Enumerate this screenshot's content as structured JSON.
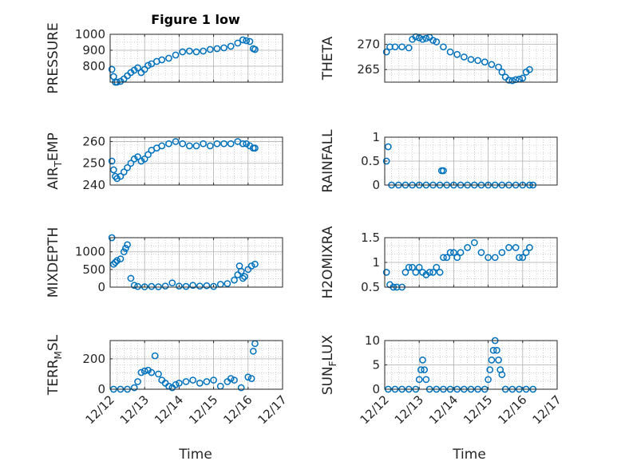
{
  "figure": {
    "title": "Figure 1 low",
    "xlabel": "Time"
  },
  "time_axis": {
    "ticks": [
      "12/12",
      "12/13",
      "12/14",
      "12/15",
      "12/16",
      "12/17"
    ],
    "xlim": [
      0,
      5
    ]
  },
  "colors": {
    "marker": "#0072BD",
    "axis": "#262626",
    "grid": "#b0b0b0"
  },
  "chart_data": [
    {
      "type": "scatter",
      "ylabel": "PRESSURE",
      "ylim": [
        700,
        1000
      ],
      "yticks": [
        800,
        900,
        1000
      ],
      "grid": true,
      "x": [
        0.05,
        0.1,
        0.15,
        0.2,
        0.3,
        0.4,
        0.5,
        0.6,
        0.7,
        0.8,
        0.9,
        1.0,
        1.1,
        1.2,
        1.35,
        1.5,
        1.7,
        1.9,
        2.1,
        2.3,
        2.5,
        2.7,
        2.9,
        3.1,
        3.3,
        3.5,
        3.7,
        3.85,
        3.95,
        4.05,
        4.15,
        4.2
      ],
      "y": [
        780,
        735,
        700,
        700,
        705,
        720,
        740,
        760,
        775,
        790,
        760,
        780,
        805,
        815,
        830,
        840,
        850,
        870,
        890,
        895,
        890,
        895,
        905,
        910,
        915,
        925,
        945,
        965,
        960,
        955,
        910,
        905
      ]
    },
    {
      "type": "scatter",
      "ylabel": "AIR_TEMP",
      "ylim": [
        240,
        262
      ],
      "yticks": [
        240,
        250,
        260
      ],
      "grid": true,
      "x": [
        0.05,
        0.1,
        0.15,
        0.2,
        0.3,
        0.4,
        0.5,
        0.6,
        0.7,
        0.8,
        0.9,
        1.0,
        1.1,
        1.2,
        1.35,
        1.5,
        1.7,
        1.9,
        2.1,
        2.3,
        2.5,
        2.7,
        2.9,
        3.1,
        3.3,
        3.5,
        3.7,
        3.85,
        3.95,
        4.05,
        4.15,
        4.2
      ],
      "y": [
        251,
        247,
        244,
        243,
        244,
        246,
        248,
        250,
        252,
        253,
        251,
        252,
        254,
        256,
        257,
        258,
        259,
        260,
        259,
        258,
        258,
        259,
        258,
        259,
        259,
        259,
        260,
        259,
        259,
        258,
        257,
        257
      ]
    },
    {
      "type": "scatter",
      "ylabel": "MIXDEPTH",
      "ylim": [
        0,
        1400
      ],
      "yticks": [
        0,
        500,
        1000
      ],
      "grid": true,
      "x": [
        0.05,
        0.1,
        0.15,
        0.2,
        0.3,
        0.4,
        0.45,
        0.5,
        0.6,
        0.7,
        0.8,
        1.0,
        1.2,
        1.4,
        1.6,
        1.8,
        2.0,
        2.2,
        2.4,
        2.6,
        2.8,
        3.0,
        3.2,
        3.4,
        3.6,
        3.7,
        3.75,
        3.8,
        3.85,
        3.9,
        4.0,
        4.1,
        4.2
      ],
      "y": [
        1400,
        650,
        700,
        750,
        800,
        1000,
        1100,
        1200,
        250,
        50,
        20,
        10,
        20,
        10,
        30,
        120,
        30,
        20,
        50,
        30,
        40,
        20,
        80,
        100,
        200,
        350,
        600,
        450,
        250,
        300,
        500,
        600,
        650
      ]
    },
    {
      "type": "scatter",
      "ylabel": "TERR_MSL",
      "ylim": [
        0,
        320
      ],
      "yticks": [
        0,
        200
      ],
      "grid": true,
      "x": [
        0.1,
        0.3,
        0.5,
        0.7,
        0.8,
        0.9,
        1.0,
        1.1,
        1.2,
        1.3,
        1.4,
        1.5,
        1.6,
        1.7,
        1.8,
        1.9,
        2.0,
        2.2,
        2.4,
        2.6,
        2.8,
        3.0,
        3.2,
        3.4,
        3.5,
        3.6,
        3.8,
        4.0,
        4.1,
        4.15,
        4.2
      ],
      "y": [
        0,
        0,
        0,
        10,
        50,
        110,
        120,
        125,
        110,
        220,
        100,
        60,
        40,
        20,
        10,
        30,
        40,
        50,
        60,
        40,
        50,
        60,
        20,
        50,
        70,
        60,
        10,
        80,
        70,
        250,
        300
      ]
    },
    {
      "type": "scatter",
      "ylabel": "THETA",
      "ylim": [
        262.5,
        272
      ],
      "yticks": [
        265,
        270
      ],
      "grid": true,
      "x": [
        0.05,
        0.15,
        0.3,
        0.5,
        0.7,
        0.8,
        0.9,
        1.0,
        1.1,
        1.2,
        1.3,
        1.4,
        1.5,
        1.7,
        1.9,
        2.1,
        2.3,
        2.5,
        2.7,
        2.9,
        3.1,
        3.3,
        3.4,
        3.5,
        3.6,
        3.7,
        3.8,
        3.9,
        4.0,
        4.1,
        4.2
      ],
      "y": [
        268.5,
        269.5,
        269.5,
        269.5,
        269.3,
        271.0,
        271.5,
        271.3,
        271.0,
        271.2,
        271.4,
        270.8,
        270.5,
        269.5,
        268.5,
        268.0,
        267.5,
        267.0,
        266.8,
        266.5,
        266.0,
        265.5,
        264.5,
        263.5,
        262.9,
        262.8,
        263.0,
        263.1,
        263.3,
        264.5,
        265.0
      ]
    },
    {
      "type": "scatter",
      "ylabel": "RAINFALL",
      "ylim": [
        0,
        1
      ],
      "yticks": [
        0,
        0.5,
        1
      ],
      "grid": true,
      "x": [
        0.05,
        0.1,
        0.2,
        0.4,
        0.6,
        0.8,
        1.0,
        1.2,
        1.4,
        1.6,
        1.65,
        1.7,
        1.8,
        2.0,
        2.2,
        2.4,
        2.6,
        2.8,
        3.0,
        3.2,
        3.4,
        3.6,
        3.8,
        4.0,
        4.2,
        4.3
      ],
      "y": [
        0.5,
        0.8,
        0,
        0,
        0,
        0,
        0,
        0,
        0,
        0,
        0.3,
        0.3,
        0,
        0,
        0,
        0,
        0,
        0,
        0,
        0,
        0,
        0,
        0,
        0,
        0,
        0
      ]
    },
    {
      "type": "scatter",
      "ylabel": "H2OMIXRA",
      "ylim": [
        0.5,
        1.5
      ],
      "yticks": [
        0.5,
        1,
        1.5
      ],
      "grid": true,
      "x": [
        0.05,
        0.15,
        0.25,
        0.35,
        0.5,
        0.6,
        0.7,
        0.8,
        0.9,
        1.0,
        1.1,
        1.2,
        1.3,
        1.4,
        1.5,
        1.6,
        1.7,
        1.8,
        1.9,
        2.0,
        2.1,
        2.2,
        2.4,
        2.6,
        2.8,
        3.0,
        3.2,
        3.4,
        3.6,
        3.8,
        3.9,
        4.0,
        4.1,
        4.2
      ],
      "y": [
        0.8,
        0.55,
        0.5,
        0.5,
        0.5,
        0.8,
        0.9,
        0.9,
        0.8,
        0.9,
        0.8,
        0.75,
        0.8,
        0.8,
        0.9,
        0.8,
        1.1,
        1.1,
        1.2,
        1.2,
        1.1,
        1.2,
        1.3,
        1.4,
        1.2,
        1.1,
        1.1,
        1.2,
        1.3,
        1.3,
        1.1,
        1.1,
        1.2,
        1.3
      ]
    },
    {
      "type": "scatter",
      "ylabel": "SUN_FLUX",
      "ylim": [
        0,
        10
      ],
      "yticks": [
        0,
        5,
        10
      ],
      "grid": true,
      "x": [
        0.1,
        0.3,
        0.5,
        0.7,
        0.9,
        1.0,
        1.05,
        1.1,
        1.15,
        1.2,
        1.3,
        1.5,
        1.7,
        1.9,
        2.1,
        2.3,
        2.5,
        2.7,
        2.9,
        3.0,
        3.05,
        3.1,
        3.15,
        3.2,
        3.25,
        3.3,
        3.35,
        3.4,
        3.5,
        3.7,
        3.9,
        4.1,
        4.3
      ],
      "y": [
        0,
        0,
        0,
        0,
        0,
        2,
        4,
        6,
        4,
        2,
        0,
        0,
        0,
        0,
        0,
        0,
        0,
        0,
        0,
        2,
        4,
        6,
        8,
        10,
        8,
        6,
        4,
        3,
        0,
        0,
        0,
        0,
        0
      ]
    }
  ]
}
